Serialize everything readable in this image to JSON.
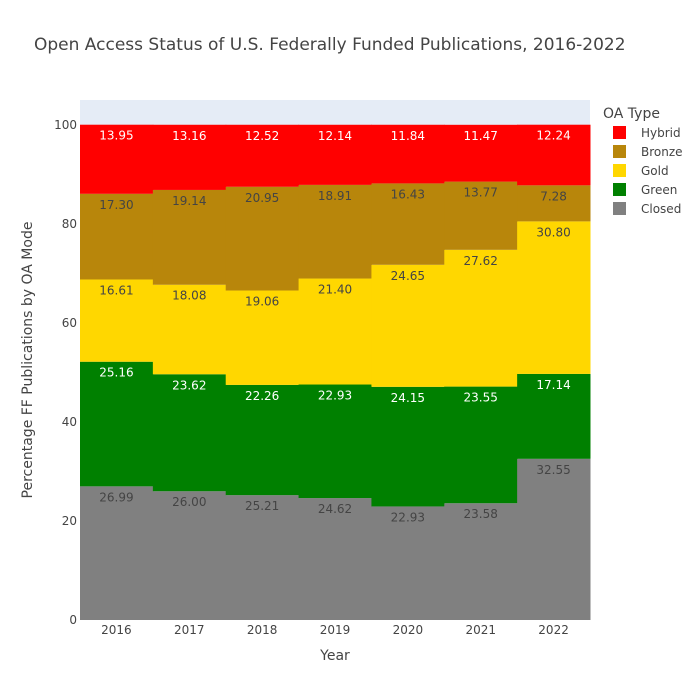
{
  "chart_data": {
    "type": "bar",
    "stacked": true,
    "title": "Open Access Status of U.S. Federally Funded Publications, 2016-2022",
    "xlabel": "Year",
    "ylabel": "Percentage FF Publications by OA Mode",
    "ylim": [
      0,
      105
    ],
    "yticks": [
      0,
      20,
      40,
      60,
      80,
      100
    ],
    "grid": false,
    "legend": {
      "title": "OA Type",
      "placement": "top-right"
    },
    "categories": [
      "2016",
      "2017",
      "2018",
      "2019",
      "2020",
      "2021",
      "2022"
    ],
    "series": [
      {
        "name": "Closed",
        "color": "#808080",
        "label_color": "#444444",
        "values": [
          26.99,
          26.0,
          25.21,
          24.62,
          22.93,
          23.58,
          32.55
        ],
        "labels": [
          "26.99",
          "26.00",
          "25.21",
          "24.62",
          "22.93",
          "23.58",
          "32.55"
        ]
      },
      {
        "name": "Green",
        "color": "#008000",
        "label_color": "#ffffff",
        "values": [
          25.16,
          23.62,
          22.26,
          22.93,
          24.15,
          23.55,
          17.14
        ],
        "labels": [
          "25.16",
          "23.62",
          "22.26",
          "22.93",
          "24.15",
          "23.55",
          "17.14"
        ]
      },
      {
        "name": "Gold",
        "color": "#FFD700",
        "label_color": "#444444",
        "values": [
          16.61,
          18.08,
          19.06,
          21.4,
          24.65,
          27.62,
          30.8
        ],
        "labels": [
          "16.61",
          "18.08",
          "19.06",
          "21.40",
          "24.65",
          "27.62",
          "30.80"
        ]
      },
      {
        "name": "Bronze",
        "color": "#B8860B",
        "label_color": "#444444",
        "values": [
          17.3,
          19.14,
          20.95,
          18.91,
          16.43,
          13.77,
          7.28
        ],
        "labels": [
          "17.30",
          "19.14",
          "20.95",
          "18.91",
          "16.43",
          "13.77",
          "7.28"
        ]
      },
      {
        "name": "Hybrid",
        "color": "#FF0000",
        "label_color": "#ffffff",
        "values": [
          13.95,
          13.16,
          12.52,
          12.14,
          11.84,
          11.47,
          12.24
        ],
        "labels": [
          "13.95",
          "13.16",
          "12.52",
          "12.14",
          "11.84",
          "11.47",
          "12.24"
        ]
      }
    ],
    "legend_order": [
      "Hybrid",
      "Bronze",
      "Gold",
      "Green",
      "Closed"
    ],
    "plot_background": "#E5ECF6"
  }
}
